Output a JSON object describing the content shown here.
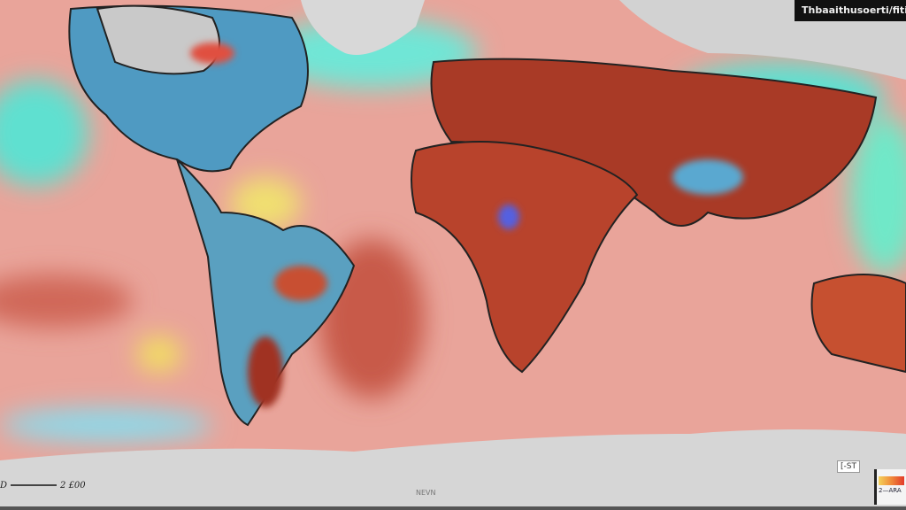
{
  "map": {
    "title": "Thbaaithusoerti/fitin",
    "scale_bar": {
      "left_label": "D",
      "right_label": "2 £00"
    },
    "badge": "[-ST",
    "legend": {
      "label": "2—ARA",
      "colors": [
        "#f4d25a",
        "#f08a3a",
        "#e23a2a"
      ]
    },
    "bottom_label": "NEVN",
    "colors": {
      "ocean": "#e9a49a",
      "warm_land": "#b8432c",
      "cool_land": "#4f9ac2",
      "ice": "#d4d4d4",
      "anomaly_cyan": "#4fe0d0",
      "anomaly_yellow": "#f0e070"
    }
  }
}
